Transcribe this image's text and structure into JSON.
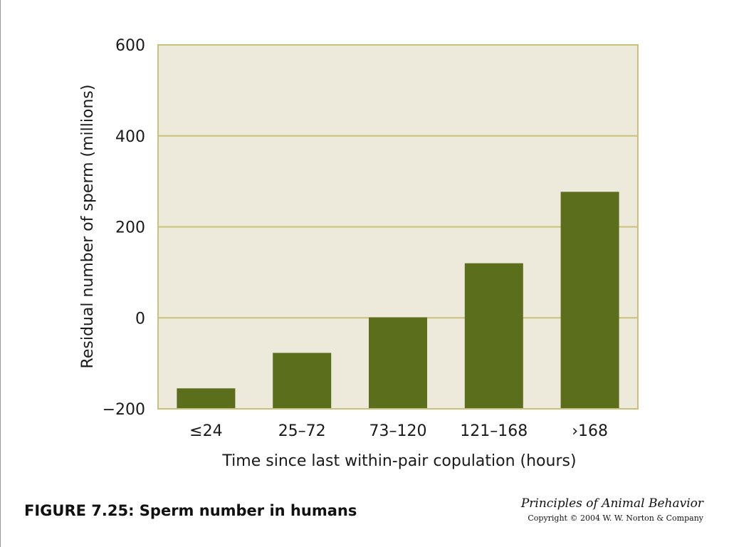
{
  "chart_data": {
    "type": "bar",
    "categories": [
      "≤24",
      "25–72",
      "73–120",
      "121–168",
      "›168"
    ],
    "values": [
      -155,
      -77,
      1,
      120,
      277
    ],
    "xlabel": "Time since last within-pair copulation (hours)",
    "ylabel": "Residual number of sperm (millions)",
    "ylim": [
      -200,
      600
    ],
    "yticks": [
      -200,
      0,
      200,
      400,
      600
    ],
    "ytick_labels": [
      "−200",
      "0",
      "200",
      "400",
      "600"
    ],
    "grid": true,
    "colors": {
      "bar": "#5a6e1c",
      "plot_bg": "#edeadb",
      "grid": "#c9c07a",
      "frame": "#c9c07a"
    }
  },
  "caption": "FIGURE 7.25: Sperm number in humans",
  "book_title": "Principles of Animal Behavior",
  "copyright": "Copyright © 2004 W. W. Norton & Company"
}
